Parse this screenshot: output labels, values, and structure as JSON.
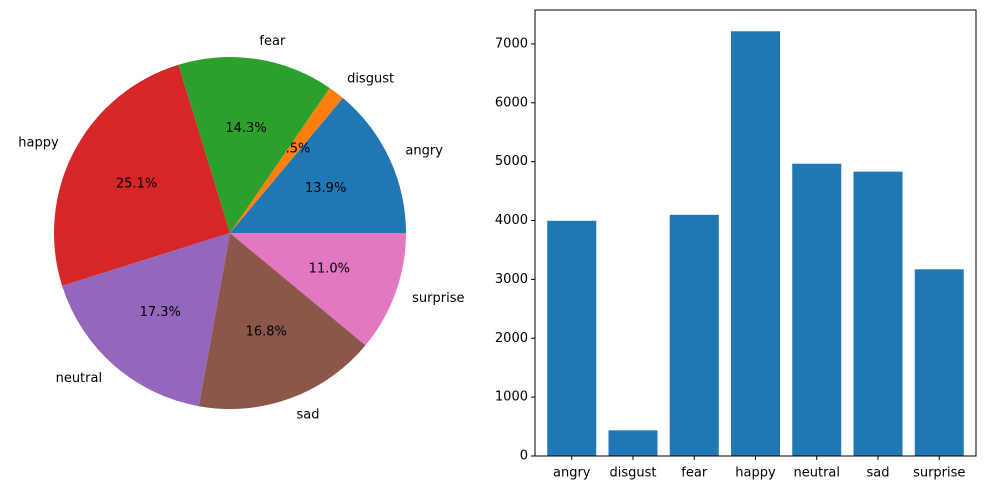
{
  "chart_data": [
    {
      "type": "pie",
      "labels": [
        "angry",
        "disgust",
        "fear",
        "happy",
        "neutral",
        "sad",
        "surprise"
      ],
      "values": [
        13.9,
        1.5,
        14.3,
        25.1,
        17.3,
        16.8,
        11.0
      ],
      "percent_labels": [
        "13.9%",
        "1.5%",
        "14.3%",
        "25.1%",
        "17.3%",
        "16.8%",
        "11.0%"
      ],
      "colors": [
        "#1f77b4",
        "#ff7f0e",
        "#2ca02c",
        "#d62728",
        "#9467bd",
        "#8c564b",
        "#e377c2"
      ]
    },
    {
      "type": "bar",
      "categories": [
        "angry",
        "disgust",
        "fear",
        "happy",
        "neutral",
        "sad",
        "surprise"
      ],
      "values": [
        3995,
        436,
        4097,
        7215,
        4965,
        4830,
        3171
      ],
      "ylim": [
        0,
        7576
      ],
      "yticks": [
        0,
        1000,
        2000,
        3000,
        4000,
        5000,
        6000,
        7000
      ],
      "color": "#1f77b4",
      "title": "",
      "xlabel": "",
      "ylabel": ""
    }
  ]
}
